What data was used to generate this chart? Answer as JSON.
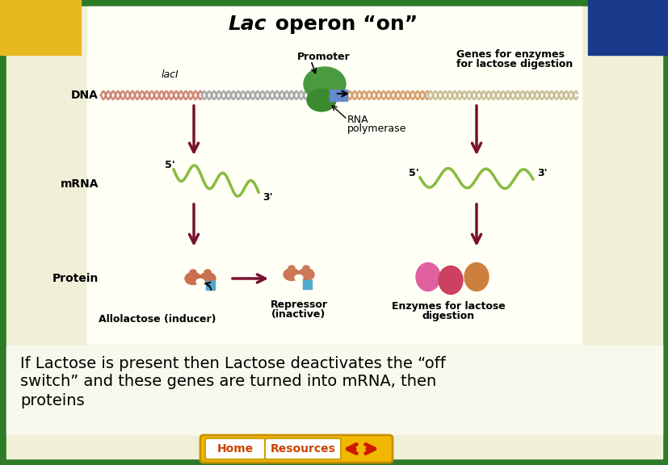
{
  "bg_outer": "#2d7a27",
  "bg_yellow_top_left": "#e8b820",
  "bg_blue_top_right": "#1a3a8c",
  "bg_panel": "#f0f0d8",
  "bg_diagram": "#fffff5",
  "bg_caption": "#f8f8ec",
  "dark_red": "#7a1030",
  "green_line": "#8ab840",
  "text_black": "#000000",
  "title_fontsize": 18,
  "caption_fontsize": 14,
  "label_fontsize": 9,
  "dna_label": "DNA",
  "mrna_label": "mRNA",
  "protein_label": "Protein",
  "lacI_label": "lacI",
  "promoter_label": "Promoter",
  "genes_label_line1": "Genes for enzymes",
  "genes_label_line2": "for lactose digestion",
  "rna_pol_label_line1": "RNA",
  "rna_pol_label_line2": "polymerase",
  "five_prime_1": "5'",
  "three_prime_1": "3'",
  "five_prime_2": "5'",
  "three_prime_2": "3'",
  "allolactose_label": "Allolactose (inducer)",
  "repressor_label_line1": "Repressor",
  "repressor_label_line2": "(inactive)",
  "enzymes_label_line1": "Enzymes for lactose",
  "enzymes_label_line2": "digestion",
  "caption_line1": "If Lactose is present then Lactose deactivates the “off",
  "caption_line2": "switch” and these genes are turned into mRNA, then",
  "caption_line3": "proteins",
  "home_text": "Home",
  "resources_text": "Resources",
  "btn_yellow": "#f0b800",
  "btn_orange_text": "#cc4400"
}
